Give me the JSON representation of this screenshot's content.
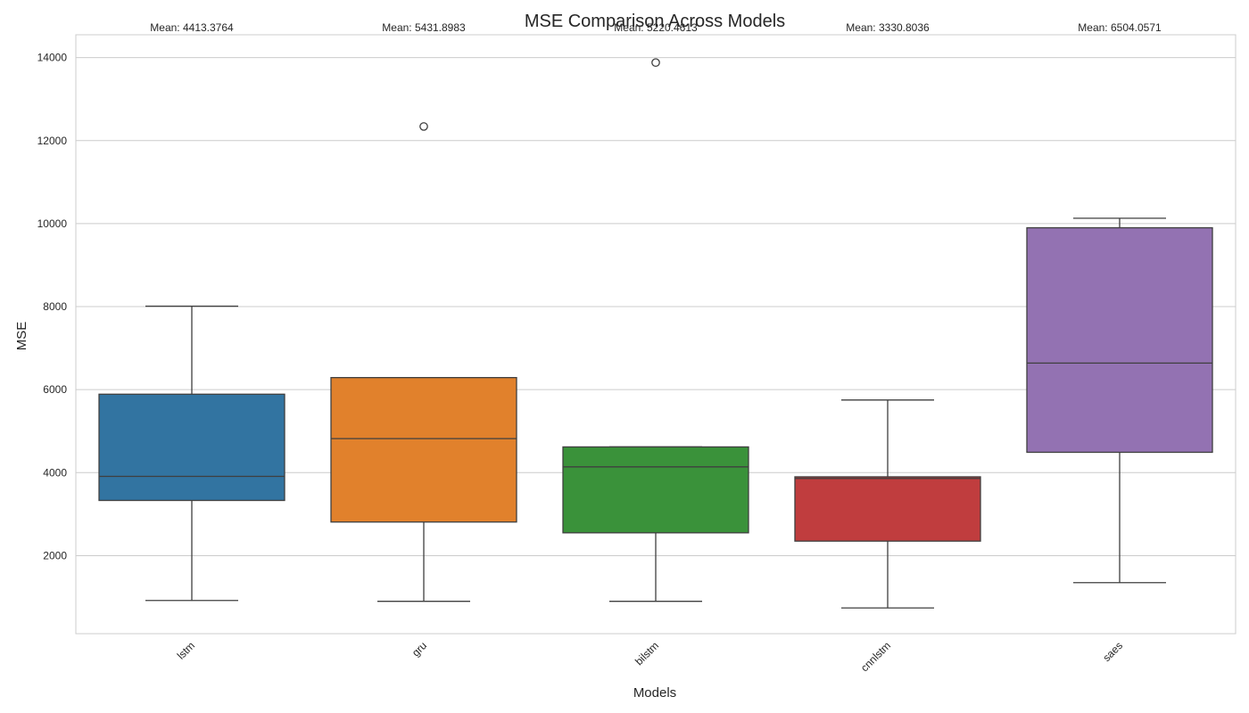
{
  "chart_data": {
    "type": "box",
    "title": "MSE Comparison Across Models",
    "xlabel": "Models",
    "ylabel": "MSE",
    "ylim": [
      120,
      14550
    ],
    "yticks": [
      2000,
      4000,
      6000,
      8000,
      10000,
      12000,
      14000
    ],
    "yticks_labels": [
      "2000",
      "4000",
      "6000",
      "8000",
      "10000",
      "12000",
      "14000"
    ],
    "grid": "horizontal",
    "categories": [
      "lstm",
      "gru",
      "bilstm",
      "cnnlstm",
      "saes"
    ],
    "series": [
      {
        "category": "lstm",
        "color": "#3274a1",
        "whisker_low": 920,
        "q1": 3330,
        "median": 3910,
        "q3": 5890,
        "whisker_high": 8010,
        "outliers": [],
        "mean_label": "Mean: 4413.3764"
      },
      {
        "category": "gru",
        "color": "#e1812c",
        "whisker_low": 900,
        "q1": 2810,
        "median": 4820,
        "q3": 6290,
        "whisker_high": 6290,
        "outliers": [
          12340
        ],
        "mean_label": "Mean: 5431.8983"
      },
      {
        "category": "bilstm",
        "color": "#3a923a",
        "whisker_low": 900,
        "q1": 2550,
        "median": 4140,
        "q3": 4620,
        "whisker_high": 4620,
        "outliers": [
          13880
        ],
        "mean_label": "Mean: 5220.4613"
      },
      {
        "category": "cnnlstm",
        "color": "#c03d3e",
        "whisker_low": 740,
        "q1": 2350,
        "median": 3860,
        "q3": 3900,
        "whisker_high": 5750,
        "outliers": [],
        "mean_label": "Mean: 3330.8036"
      },
      {
        "category": "saes",
        "color": "#9372b2",
        "whisker_low": 1350,
        "q1": 4490,
        "median": 6640,
        "q3": 9900,
        "whisker_high": 10130,
        "outliers": [],
        "mean_label": "Mean: 6504.0571"
      }
    ]
  }
}
